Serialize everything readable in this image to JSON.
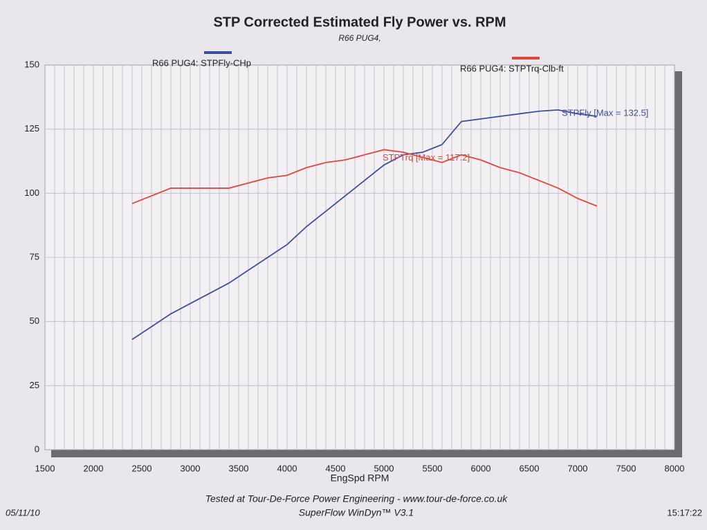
{
  "chart_data": {
    "type": "line",
    "title": "STP Corrected Estimated Fly Power vs. RPM",
    "subtitle": "R66 PUG4,",
    "x_label": "EngSpd RPM",
    "x": [
      2400,
      2600,
      2800,
      3000,
      3200,
      3400,
      3600,
      3800,
      4000,
      4200,
      4400,
      4600,
      4800,
      5000,
      5200,
      5400,
      5600,
      5800,
      6000,
      6200,
      6400,
      6600,
      6800,
      7000,
      7200
    ],
    "series": [
      {
        "name": "R66 PUG4: STPFly-CHp",
        "color": "#3b4f9a",
        "values": [
          43,
          48,
          53,
          57,
          61,
          65,
          70,
          75,
          80,
          87,
          93,
          99,
          105,
          111,
          115,
          116,
          119,
          128,
          129,
          130,
          131,
          132,
          132.5,
          131,
          130
        ]
      },
      {
        "name": "R66 PUG4: STPTrq-Clb-ft",
        "color": "#e0463c",
        "values": [
          96,
          99,
          102,
          102,
          102,
          102,
          104,
          106,
          107,
          110,
          112,
          113,
          115,
          117,
          116,
          114,
          112,
          115,
          113,
          110,
          108,
          105,
          102,
          98,
          95
        ]
      }
    ],
    "annotations": [
      "STPFly [Max = 132.5]",
      "STPTrq [Max = 117.2]"
    ],
    "xlim": [
      1500,
      8000
    ],
    "xticks": [
      1500,
      2000,
      2500,
      3000,
      3500,
      4000,
      4500,
      5000,
      5500,
      6000,
      6500,
      7000,
      7500,
      8000
    ],
    "ylim": [
      0,
      150
    ],
    "yticks": [
      0,
      25,
      50,
      75,
      100,
      125,
      150
    ],
    "grid": true,
    "footer": [
      "Tested at Tour-De-Force Power Engineering - www.tour-de-force.co.uk",
      "SuperFlow WinDyn™ V3.1"
    ],
    "date": "05/11/10",
    "time": "15:17:22"
  }
}
